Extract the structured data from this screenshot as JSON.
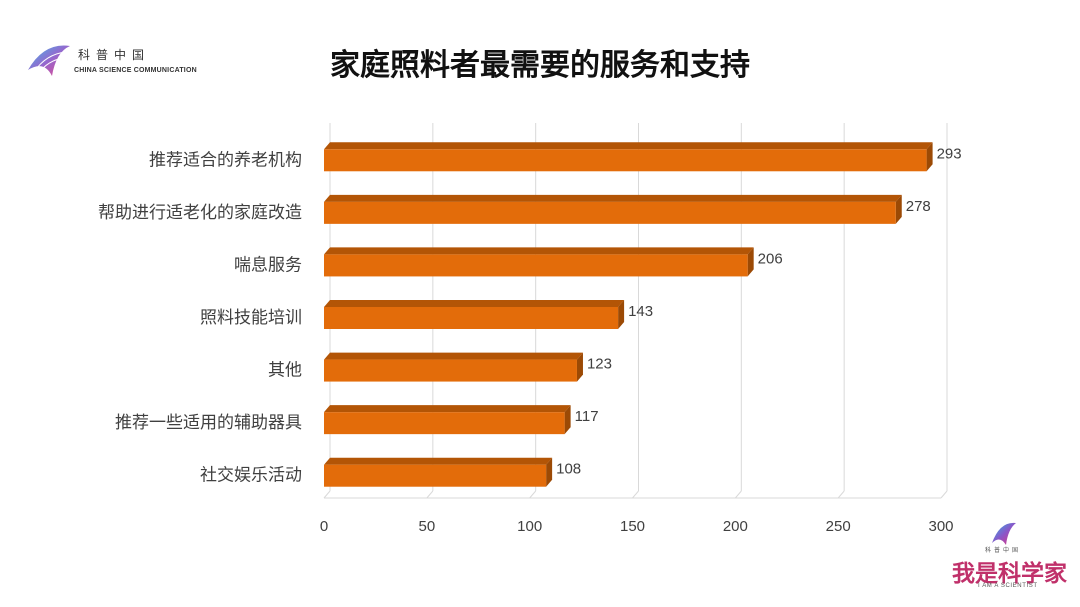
{
  "logo": {
    "cn": "科普中国",
    "en": "CHINA SCIENCE COMMUNICATION"
  },
  "title": "家庭照料者最需要的服务和支持",
  "badge": {
    "small_cn": "科普中国",
    "big": "我是科学家",
    "en": "I AM A SCIENTIST"
  },
  "colors": {
    "bar": "#e36c0a",
    "bar_top": "#b35506",
    "bar_end": "#9c4a05",
    "grid": "#d9d9d9",
    "label": "#404040"
  },
  "chart_data": {
    "type": "bar",
    "orientation": "horizontal",
    "categories": [
      "推荐适合的养老机构",
      "帮助进行适老化的家庭改造",
      "喘息服务",
      "照料技能培训",
      "其他",
      "推荐一些适用的辅助器具",
      "社交娱乐活动"
    ],
    "values": [
      293,
      278,
      206,
      143,
      123,
      117,
      108
    ],
    "xlim": [
      0,
      300
    ],
    "xticks": [
      0,
      50,
      100,
      150,
      200,
      250,
      300
    ],
    "grid": true,
    "data_labels": true
  }
}
